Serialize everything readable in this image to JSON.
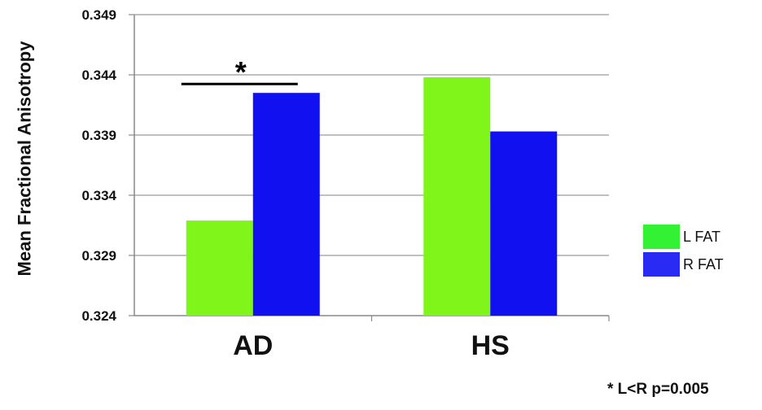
{
  "chart_data": {
    "type": "bar",
    "categories": [
      "AD",
      "HS"
    ],
    "series": [
      {
        "name": "L FAT",
        "values": [
          0.3319,
          0.3438
        ]
      },
      {
        "name": "R FAT",
        "values": [
          0.3425,
          0.3393
        ]
      }
    ],
    "title": "",
    "xlabel": "",
    "ylabel": "Mean Fractional Anisotropy",
    "ylim": [
      0.324,
      0.349
    ],
    "yticks": [
      "0.324",
      "0.329",
      "0.334",
      "0.339",
      "0.344",
      "0.349"
    ],
    "grid": true,
    "legend_position": "right",
    "colors": {
      "L FAT": "#80f51a",
      "R FAT": "#1010f0"
    },
    "legend_colors": {
      "L FAT": "#33f233",
      "R FAT": "#2a2af5"
    },
    "annotation": {
      "marker": "*",
      "category": "AD"
    },
    "footnote": "* L<R p=0.005"
  }
}
